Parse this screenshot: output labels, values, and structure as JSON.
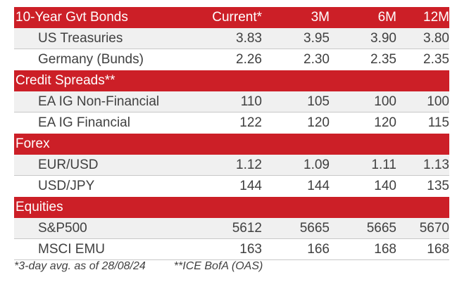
{
  "columns": [
    "Current*",
    "3M",
    "6M",
    "12M"
  ],
  "sections": [
    {
      "title": "10-Year Gvt Bonds",
      "rows": [
        {
          "label": "US Treasuries",
          "values": [
            "3.83",
            "3.95",
            "3.90",
            "3.80"
          ]
        },
        {
          "label": "Germany (Bunds)",
          "values": [
            "2.26",
            "2.30",
            "2.35",
            "2.35"
          ]
        }
      ]
    },
    {
      "title": "Credit Spreads**",
      "rows": [
        {
          "label": "EA IG Non-Financial",
          "values": [
            "110",
            "105",
            "100",
            "100"
          ]
        },
        {
          "label": "EA IG Financial",
          "values": [
            "122",
            "120",
            "120",
            "115"
          ]
        }
      ]
    },
    {
      "title": "Forex",
      "rows": [
        {
          "label": "EUR/USD",
          "values": [
            "1.12",
            "1.09",
            "1.11",
            "1.13"
          ]
        },
        {
          "label": "USD/JPY",
          "values": [
            "144",
            "144",
            "140",
            "135"
          ]
        }
      ]
    },
    {
      "title": "Equities",
      "rows": [
        {
          "label": "S&P500",
          "values": [
            "5612",
            "5665",
            "5665",
            "5670"
          ]
        },
        {
          "label": "MSCI EMU",
          "values": [
            "163",
            "166",
            "168",
            "168"
          ]
        }
      ]
    }
  ],
  "footnotes": {
    "note1": "*3-day avg. as of 28/08/24",
    "note2": "**ICE BofA (OAS)"
  },
  "colors": {
    "header_bg": "#cc1f27",
    "header_text": "#ffffff",
    "shade_bg": "#f0f0f0",
    "text": "#404040"
  }
}
